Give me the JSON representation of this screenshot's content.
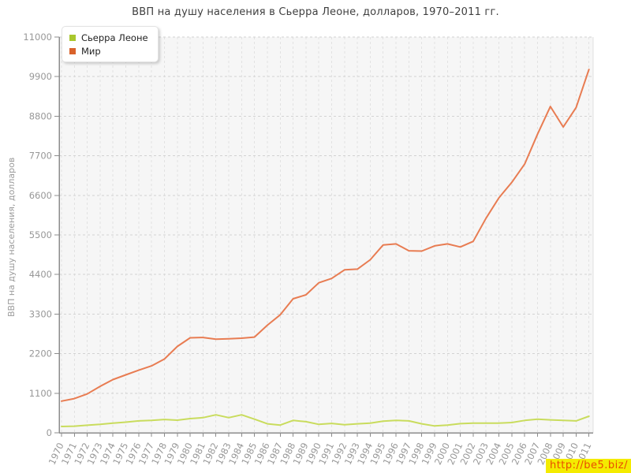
{
  "chart_data": {
    "type": "line",
    "title": "ВВП на душу населения в Сьерра Леоне, долларов, 1970–2011 гг.",
    "ylabel": "ВВП на душу населения, долларов",
    "xlabel": "",
    "ylim": [
      0,
      11000
    ],
    "yticks": [
      0,
      1100,
      2200,
      3300,
      4400,
      5500,
      6600,
      7700,
      8800,
      9900,
      11000
    ],
    "grid": true,
    "legend_position": "top-left",
    "plot_background": "#f6f6f6",
    "x": [
      "1970",
      "1971",
      "1972",
      "1973",
      "1974",
      "1975",
      "1976",
      "1977",
      "1978",
      "1979",
      "1980",
      "1981",
      "1982",
      "1983",
      "1984",
      "1985",
      "1986",
      "1987",
      "1988",
      "1989",
      "1990",
      "1991",
      "1992",
      "1993",
      "1994",
      "1995",
      "1996",
      "1997",
      "1998",
      "1999",
      "2000",
      "2001",
      "2002",
      "2003",
      "2004",
      "2005",
      "2006",
      "2007",
      "2008",
      "2009",
      "2010",
      "2011"
    ],
    "series": [
      {
        "name": "Сьерра Леоне",
        "line_color": "#c9dc5d",
        "marker_color": "#a9c72e",
        "values": [
          175,
          185,
          210,
          235,
          270,
          295,
          330,
          345,
          370,
          350,
          395,
          420,
          500,
          420,
          500,
          380,
          250,
          215,
          345,
          310,
          235,
          260,
          225,
          250,
          270,
          325,
          345,
          330,
          250,
          190,
          215,
          255,
          270,
          270,
          270,
          285,
          345,
          380,
          360,
          345,
          330,
          460
        ]
      },
      {
        "name": "Мир",
        "line_color": "#e87c52",
        "marker_color": "#d9622b",
        "values": [
          880,
          950,
          1080,
          1290,
          1480,
          1610,
          1740,
          1860,
          2050,
          2400,
          2640,
          2650,
          2600,
          2615,
          2630,
          2660,
          2990,
          3280,
          3725,
          3835,
          4170,
          4290,
          4530,
          4550,
          4810,
          5220,
          5250,
          5060,
          5050,
          5195,
          5250,
          5165,
          5320,
          5965,
          6530,
          6960,
          7470,
          8300,
          9070,
          8500,
          9040,
          10100
        ]
      }
    ]
  },
  "watermark": {
    "text": "http://be5.biz/",
    "color": "#ea4c00",
    "background": "#f4eb00"
  }
}
